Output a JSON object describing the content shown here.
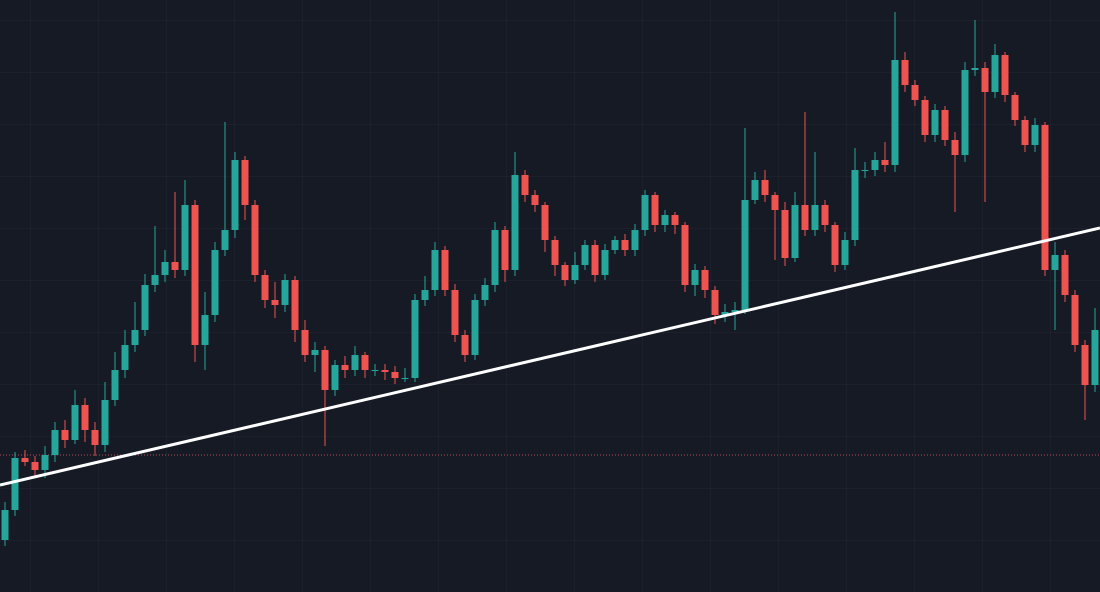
{
  "chart_data": {
    "type": "candlestick",
    "up_color": "#26a69a",
    "down_color": "#ef5350",
    "xlim": [
      -0.5,
      109.5
    ],
    "ylim": [
      0,
      592
    ],
    "open": [
      52,
      82,
      134,
      130,
      122,
      137,
      162,
      152,
      187,
      162,
      147,
      192,
      222,
      247,
      262,
      307,
      317,
      330,
      322,
      387,
      247,
      277,
      342,
      362,
      432,
      387,
      317,
      292,
      287,
      312,
      262,
      237,
      242,
      202,
      227,
      222,
      237,
      222,
      222,
      220,
      214,
      214,
      292,
      302,
      342,
      302,
      257,
      237,
      292,
      307,
      362,
      322,
      417,
      397,
      387,
      352,
      327,
      312,
      327,
      347,
      317,
      342,
      352,
      342,
      362,
      397,
      367,
      377,
      367,
      307,
      322,
      302,
      277,
      280,
      282,
      392,
      412,
      397,
      382,
      334,
      387,
      362,
      387,
      367,
      327,
      352,
      422,
      422,
      432,
      427,
      532,
      507,
      492,
      457,
      482,
      452,
      437,
      522,
      524,
      500,
      537,
      497,
      472,
      447,
      467,
      322,
      337,
      297,
      247,
      207
    ],
    "high": [
      90,
      140,
      142,
      136,
      146,
      170,
      172,
      202,
      194,
      170,
      210,
      240,
      262,
      290,
      318,
      366,
      342,
      400,
      412,
      392,
      300,
      350,
      470,
      440,
      436,
      392,
      322,
      310,
      318,
      316,
      272,
      250,
      246,
      232,
      236,
      246,
      240,
      228,
      228,
      226,
      224,
      298,
      316,
      350,
      346,
      308,
      262,
      298,
      314,
      370,
      366,
      440,
      422,
      402,
      390,
      356,
      330,
      340,
      352,
      352,
      348,
      356,
      358,
      368,
      402,
      400,
      382,
      380,
      370,
      328,
      326,
      306,
      288,
      290,
      464,
      420,
      422,
      400,
      390,
      400,
      480,
      440,
      392,
      370,
      360,
      444,
      430,
      440,
      450,
      580,
      540,
      512,
      496,
      488,
      486,
      460,
      530,
      572,
      530,
      548,
      540,
      500,
      476,
      474,
      470,
      350,
      342,
      302,
      252,
      284
    ],
    "low": [
      46,
      76,
      126,
      116,
      114,
      130,
      144,
      148,
      150,
      136,
      140,
      186,
      214,
      240,
      256,
      300,
      310,
      314,
      316,
      230,
      222,
      270,
      336,
      354,
      372,
      310,
      284,
      274,
      280,
      250,
      230,
      220,
      146,
      196,
      214,
      216,
      214,
      216,
      212,
      208,
      210,
      210,
      286,
      296,
      296,
      250,
      230,
      232,
      286,
      300,
      310,
      316,
      390,
      380,
      340,
      316,
      306,
      308,
      322,
      310,
      312,
      338,
      336,
      336,
      356,
      360,
      360,
      358,
      300,
      296,
      294,
      268,
      270,
      262,
      278,
      388,
      390,
      332,
      326,
      330,
      356,
      356,
      360,
      320,
      322,
      346,
      414,
      416,
      420,
      420,
      500,
      486,
      450,
      450,
      446,
      380,
      430,
      516,
      390,
      494,
      490,
      466,
      440,
      440,
      316,
      262,
      290,
      240,
      172,
      200
    ],
    "close": [
      82,
      134,
      130,
      122,
      137,
      162,
      152,
      187,
      162,
      147,
      192,
      222,
      247,
      262,
      307,
      317,
      330,
      322,
      387,
      247,
      277,
      342,
      362,
      432,
      387,
      317,
      292,
      287,
      312,
      262,
      237,
      242,
      202,
      227,
      222,
      237,
      222,
      222,
      220,
      214,
      214,
      292,
      302,
      342,
      302,
      257,
      237,
      292,
      307,
      362,
      322,
      417,
      397,
      387,
      352,
      327,
      312,
      327,
      347,
      317,
      342,
      352,
      342,
      362,
      397,
      367,
      377,
      367,
      307,
      322,
      302,
      277,
      280,
      282,
      392,
      412,
      397,
      382,
      334,
      387,
      362,
      387,
      367,
      327,
      352,
      422,
      422,
      432,
      427,
      532,
      507,
      492,
      457,
      482,
      452,
      437,
      522,
      524,
      500,
      537,
      497,
      472,
      447,
      467,
      322,
      337,
      297,
      247,
      207,
      262
    ],
    "trendline": {
      "x": [
        -0.5,
        109.5
      ],
      "y": [
        107,
        364
      ],
      "color": "#ffffff"
    },
    "price_line": {
      "value": 137,
      "color": "#b4525a"
    }
  }
}
